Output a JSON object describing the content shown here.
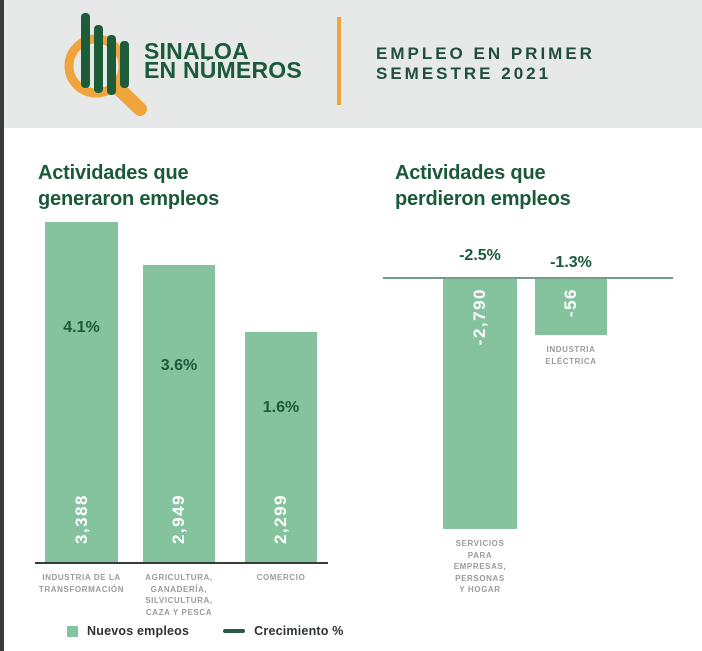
{
  "header": {
    "logo_line1": "SINALOA",
    "logo_line2": "EN NÚMEROS",
    "title_line1": "EMPLEO EN PRIMER",
    "title_line2": "SEMESTRE 2021"
  },
  "chart_data": [
    {
      "type": "bar",
      "title": "Actividades que generaron empleos",
      "categories": [
        "Industria de la Transformación",
        "Agricultura, Ganadería, Silvicultura, Caza y Pesca",
        "Comercio"
      ],
      "series": [
        {
          "name": "Nuevos empleos",
          "values": [
            3388,
            2949,
            2299
          ]
        },
        {
          "name": "Crecimiento %",
          "values": [
            4.1,
            3.6,
            1.6
          ]
        }
      ],
      "bar_value_labels": [
        "3,388",
        "2,949",
        "2,299"
      ],
      "pct_labels": [
        "4.1%",
        "3.6%",
        "1.6%"
      ],
      "category_lines": [
        [
          "INDUSTRIA DE LA",
          "TRANSFORMACIÓN"
        ],
        [
          "AGRICULTURA,",
          "GANADERÍA,",
          "SILVICULTURA,",
          "CAZA Y PESCA"
        ],
        [
          "COMERCIO"
        ]
      ],
      "grid": false,
      "legend_position": "bottom"
    },
    {
      "type": "bar",
      "title": "Actividades que perdieron empleos",
      "categories": [
        "Servicios para Empresas, Personas y Hogar",
        "Industria Eléctrica"
      ],
      "series": [
        {
          "name": "Nuevos empleos",
          "values": [
            -2790,
            -56
          ]
        },
        {
          "name": "Crecimiento %",
          "values": [
            -2.5,
            -1.3
          ]
        }
      ],
      "bar_value_labels": [
        "-2,790",
        "-56"
      ],
      "pct_labels": [
        "-2.5%",
        "-1.3%"
      ],
      "category_lines": [
        [
          "SERVICIOS",
          "PARA",
          "EMPRESAS,",
          "PERSONAS",
          "Y HOGAR"
        ],
        [
          "INDUSTRIA",
          "ELÉCTRICA"
        ]
      ],
      "grid": false
    }
  ],
  "legend": {
    "items": [
      {
        "label": "Nuevos empleos",
        "swatch": "square",
        "color": "#85c39f"
      },
      {
        "label": "Crecimiento %",
        "swatch": "line",
        "color": "#2c5847"
      }
    ]
  },
  "colors": {
    "bar_green": "#85c39f",
    "dark_green": "#1a593a",
    "orange": "#f0a43c",
    "header_bg": "#e7e8e8",
    "axis_gray": "#9b9b9b",
    "edge_strip": "#3b3b3b",
    "lost_baseline": "#6f9e86",
    "gained_baseline": "#363d39"
  }
}
